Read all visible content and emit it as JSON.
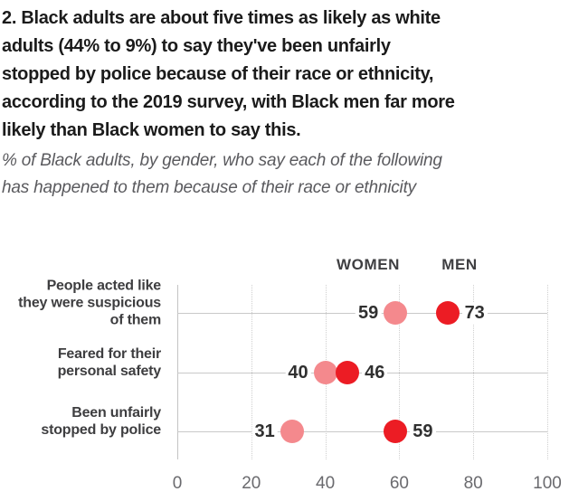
{
  "title_lines": [
    "2. Black adults are about five times as likely as white",
    "adults (44% to 9%) to say they've been unfairly",
    "stopped by police because of their race or ethnicity,",
    "according to the 2019 survey, with Black men far more",
    "likely than Black women to say this."
  ],
  "subtitle_lines": [
    "% of Black adults, by gender, who say each of the following",
    "has happened to them because of their race or ethnicity"
  ],
  "chart_data": {
    "type": "scatter",
    "variant": "horizontal-dot-plot",
    "categories": [
      [
        "People acted like",
        "they were suspicious",
        "of them"
      ],
      [
        "Feared for their",
        "personal safety"
      ],
      [
        "Been unfairly",
        "stopped by police"
      ]
    ],
    "series": [
      {
        "name": "WOMEN",
        "color": "#F4898D",
        "values": [
          59,
          40,
          31
        ]
      },
      {
        "name": "MEN",
        "color": "#EC1C24",
        "values": [
          73,
          46,
          59
        ]
      }
    ],
    "xlim": [
      0,
      100
    ],
    "xticks": [
      0,
      20,
      40,
      60,
      80,
      100
    ],
    "grid": "vertical-dotted",
    "legend_position": "top-inline-above-first-row"
  },
  "colors": {
    "women_dot": "#F4898D",
    "men_dot": "#EC1C24",
    "title_text": "#1b1b1b",
    "subtitle_text": "#5a5a5e",
    "category_text": "#3e3e40",
    "value_text": "#303030",
    "axis_text": "#6a6a6e",
    "gridline": "#cfcfcf",
    "row_line": "#c9c9c9"
  }
}
